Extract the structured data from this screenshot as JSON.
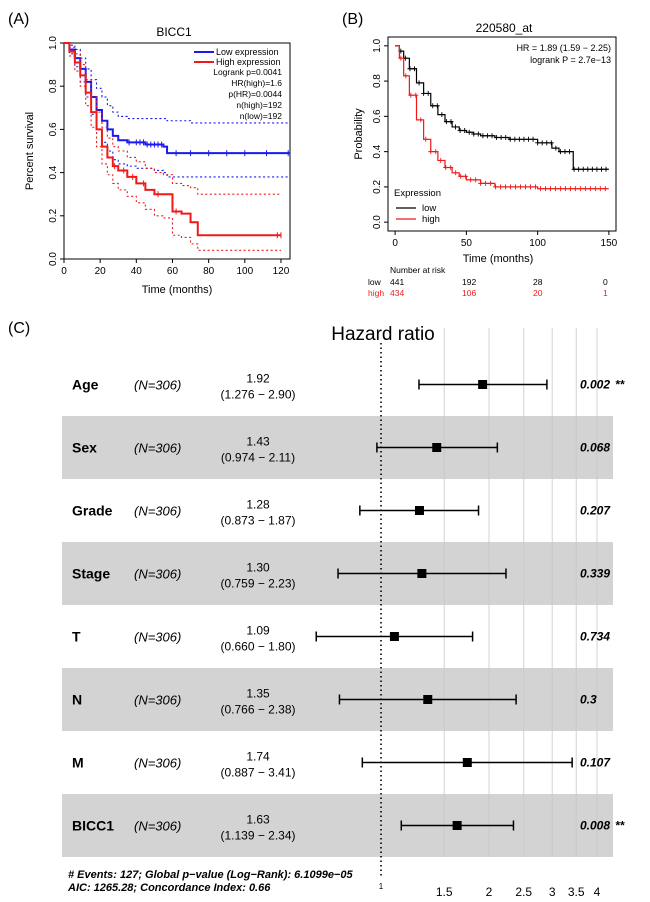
{
  "panels": {
    "a": {
      "label": "(A)",
      "chart_data": {
        "type": "line",
        "title": "BICC1",
        "xlabel": "Time (months)",
        "ylabel": "Percent survival",
        "xlim": [
          0,
          125
        ],
        "ylim": [
          0,
          1.0
        ],
        "xticks": [
          "0",
          "20",
          "40",
          "60",
          "80",
          "100",
          "120"
        ],
        "yticks": [
          "0.0",
          "0.2",
          "0.4",
          "0.6",
          "0.8",
          "1.0"
        ],
        "legend": {
          "position": "top-right",
          "items": [
            "Low expression",
            "High expression"
          ]
        },
        "stats": [
          "Logrank p=0.0041",
          "HR(high)=1.6",
          "p(HR)=0.0044",
          "n(high)=192",
          "n(low)=192"
        ],
        "series": [
          {
            "name": "Low expression",
            "color": "#1a1aee",
            "x": [
              0,
              3,
              6,
              9,
              12,
              15,
              18,
              21,
              24,
              27,
              30,
              35,
              40,
              45,
              50,
              55,
              57,
              70,
              90,
              110,
              125
            ],
            "y": [
              1.0,
              0.97,
              0.93,
              0.88,
              0.82,
              0.75,
              0.69,
              0.64,
              0.6,
              0.57,
              0.55,
              0.54,
              0.54,
              0.53,
              0.53,
              0.52,
              0.49,
              0.49,
              0.49,
              0.49,
              0.49
            ],
            "upper": [
              1.0,
              0.99,
              0.97,
              0.93,
              0.88,
              0.83,
              0.79,
              0.75,
              0.71,
              0.68,
              0.66,
              0.65,
              0.65,
              0.65,
              0.65,
              0.65,
              0.64,
              0.63,
              0.63,
              0.63,
              0.63
            ],
            "lower": [
              1.0,
              0.95,
              0.89,
              0.82,
              0.75,
              0.67,
              0.6,
              0.54,
              0.5,
              0.46,
              0.44,
              0.43,
              0.42,
              0.42,
              0.41,
              0.4,
              0.38,
              0.38,
              0.38,
              0.38,
              0.38
            ]
          },
          {
            "name": "High expression",
            "color": "#ee1a1a",
            "x": [
              0,
              3,
              6,
              9,
              12,
              15,
              18,
              21,
              24,
              27,
              30,
              35,
              40,
              45,
              50,
              55,
              60,
              65,
              70,
              74,
              80,
              100,
              120
            ],
            "y": [
              1.0,
              0.96,
              0.91,
              0.85,
              0.77,
              0.68,
              0.6,
              0.52,
              0.47,
              0.43,
              0.41,
              0.38,
              0.35,
              0.32,
              0.3,
              0.3,
              0.22,
              0.21,
              0.17,
              0.11,
              0.11,
              0.11,
              0.11
            ],
            "upper": [
              1.0,
              0.98,
              0.95,
              0.9,
              0.83,
              0.75,
              0.68,
              0.61,
              0.56,
              0.52,
              0.5,
              0.47,
              0.45,
              0.42,
              0.4,
              0.39,
              0.35,
              0.34,
              0.33,
              0.3,
              0.3,
              0.3,
              0.3
            ],
            "lower": [
              1.0,
              0.94,
              0.87,
              0.8,
              0.71,
              0.61,
              0.52,
              0.44,
              0.39,
              0.35,
              0.32,
              0.29,
              0.26,
              0.23,
              0.2,
              0.19,
              0.11,
              0.1,
              0.07,
              0.04,
              0.04,
              0.04,
              0.04
            ]
          }
        ]
      }
    },
    "b": {
      "label": "(B)",
      "chart_data": {
        "type": "line",
        "title": "220580_at",
        "xlabel": "Time (months)",
        "ylabel": "Probability",
        "xlim": [
          0,
          155
        ],
        "ylim": [
          0,
          1.0
        ],
        "xticks": [
          "0",
          "50",
          "100",
          "150"
        ],
        "yticks": [
          "0.0",
          "0.2",
          "0.4",
          "0.6",
          "0.8",
          "1.0"
        ],
        "stats": [
          "HR = 1.89 (1.59 − 2.25)",
          "logrank P = 2.7e−13"
        ],
        "legend": {
          "position": "bottom-left",
          "title": "Expression",
          "items": [
            "low",
            "high"
          ]
        },
        "series": [
          {
            "name": "low",
            "color": "#000000",
            "x": [
              0,
              3,
              6,
              10,
              15,
              20,
              25,
              30,
              35,
              40,
              45,
              50,
              55,
              60,
              70,
              80,
              90,
              100,
              110,
              115,
              122,
              125,
              150
            ],
            "y": [
              1.0,
              0.97,
              0.93,
              0.87,
              0.79,
              0.73,
              0.66,
              0.61,
              0.57,
              0.54,
              0.52,
              0.51,
              0.5,
              0.49,
              0.48,
              0.47,
              0.47,
              0.45,
              0.42,
              0.4,
              0.4,
              0.3,
              0.3
            ]
          },
          {
            "name": "high",
            "color": "#ee1a1a",
            "x": [
              0,
              3,
              6,
              10,
              15,
              20,
              25,
              30,
              35,
              40,
              45,
              50,
              60,
              70,
              80,
              90,
              100,
              110,
              150
            ],
            "y": [
              1.0,
              0.93,
              0.83,
              0.72,
              0.58,
              0.47,
              0.4,
              0.35,
              0.31,
              0.28,
              0.26,
              0.24,
              0.22,
              0.2,
              0.2,
              0.2,
              0.19,
              0.19,
              0.19
            ]
          }
        ],
        "risk_table": {
          "title": "Number at risk",
          "rows": [
            {
              "name": "low",
              "color": "#000000",
              "values": [
                "441",
                "192",
                "28",
                "0"
              ]
            },
            {
              "name": "high",
              "color": "#ee1a1a",
              "values": [
                "434",
                "106",
                "20",
                "1"
              ]
            }
          ]
        }
      }
    },
    "c": {
      "label": "(C)",
      "chart_data": {
        "type": "forest",
        "title": "Hazard ratio",
        "reference": 1,
        "xlim": [
          0.5,
          4.0
        ],
        "scale": "log",
        "xticks": [
          {
            "value": 1,
            "label": "1"
          },
          {
            "value": 1.5,
            "label": "1.5"
          },
          {
            "value": 2,
            "label": "2"
          },
          {
            "value": 2.5,
            "label": "2.5"
          },
          {
            "value": 3,
            "label": "3"
          },
          {
            "value": 3.5,
            "label": "3.5"
          },
          {
            "value": 4,
            "label": "4"
          }
        ],
        "rows": [
          {
            "name": "Age",
            "n": "(N=306)",
            "hr": 1.92,
            "hr_text": "1.92",
            "ci_text": "(1.276 − 2.90)",
            "lo": 1.276,
            "hi": 2.9,
            "p": "0.002",
            "sig": "**",
            "shaded": false
          },
          {
            "name": "Sex",
            "n": "(N=306)",
            "hr": 1.43,
            "hr_text": "1.43",
            "ci_text": "(0.974 − 2.11)",
            "lo": 0.974,
            "hi": 2.11,
            "p": "0.068",
            "sig": "",
            "shaded": true
          },
          {
            "name": "Grade",
            "n": "(N=306)",
            "hr": 1.28,
            "hr_text": "1.28",
            "ci_text": "(0.873 − 1.87)",
            "lo": 0.873,
            "hi": 1.87,
            "p": "0.207",
            "sig": "",
            "shaded": false
          },
          {
            "name": "Stage",
            "n": "(N=306)",
            "hr": 1.3,
            "hr_text": "1.30",
            "ci_text": "(0.759 − 2.23)",
            "lo": 0.759,
            "hi": 2.23,
            "p": "0.339",
            "sig": "",
            "shaded": true
          },
          {
            "name": "T",
            "n": "(N=306)",
            "hr": 1.09,
            "hr_text": "1.09",
            "ci_text": "(0.660 − 1.80)",
            "lo": 0.66,
            "hi": 1.8,
            "p": "0.734",
            "sig": "",
            "shaded": false
          },
          {
            "name": "N",
            "n": "(N=306)",
            "hr": 1.35,
            "hr_text": "1.35",
            "ci_text": "(0.766 − 2.38)",
            "lo": 0.766,
            "hi": 2.38,
            "p": "0.3",
            "sig": "",
            "shaded": true
          },
          {
            "name": "M",
            "n": "(N=306)",
            "hr": 1.74,
            "hr_text": "1.74",
            "ci_text": "(0.887 − 3.41)",
            "lo": 0.887,
            "hi": 3.41,
            "p": "0.107",
            "sig": "",
            "shaded": false
          },
          {
            "name": "BICC1",
            "n": "(N=306)",
            "hr": 1.63,
            "hr_text": "1.63",
            "ci_text": "(1.139 − 2.34)",
            "lo": 1.139,
            "hi": 2.34,
            "p": "0.008",
            "sig": "**",
            "shaded": true
          }
        ],
        "footer": [
          "# Events: 127; Global p−value (Log−Rank): 6.1099e−05",
          "AIC: 1265.28; Concordance Index: 0.66"
        ]
      }
    }
  }
}
